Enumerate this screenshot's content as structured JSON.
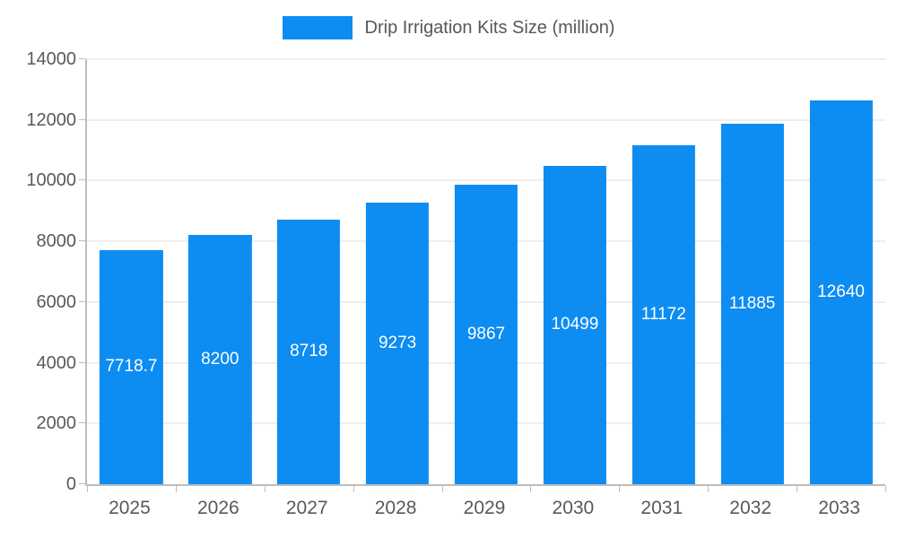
{
  "legend": {
    "label": "Drip Irrigation Kits Size (million)"
  },
  "chart_data": {
    "type": "bar",
    "title": "Drip Irrigation Kits Size (million)",
    "categories": [
      "2025",
      "2026",
      "2027",
      "2028",
      "2029",
      "2030",
      "2031",
      "2032",
      "2033"
    ],
    "values": [
      7718.7,
      8200,
      8718,
      9273,
      9867,
      10499,
      11172,
      11885,
      12640
    ],
    "value_labels": [
      "7718.7",
      "8200",
      "8718",
      "9273",
      "9867",
      "10499",
      "11172",
      "11885",
      "12640"
    ],
    "xlabel": "",
    "ylabel": "",
    "ylim": [
      0,
      14000
    ],
    "ytick_step": 2000,
    "ytick_labels": [
      "0",
      "2000",
      "4000",
      "6000",
      "8000",
      "10000",
      "12000",
      "14000"
    ],
    "grid": true,
    "legend_position": "top",
    "bar_color": "#0d8cf2",
    "value_label_color": "#ffffff",
    "axis_label_color": "#58595b",
    "gridline_color": "#dddddd"
  }
}
